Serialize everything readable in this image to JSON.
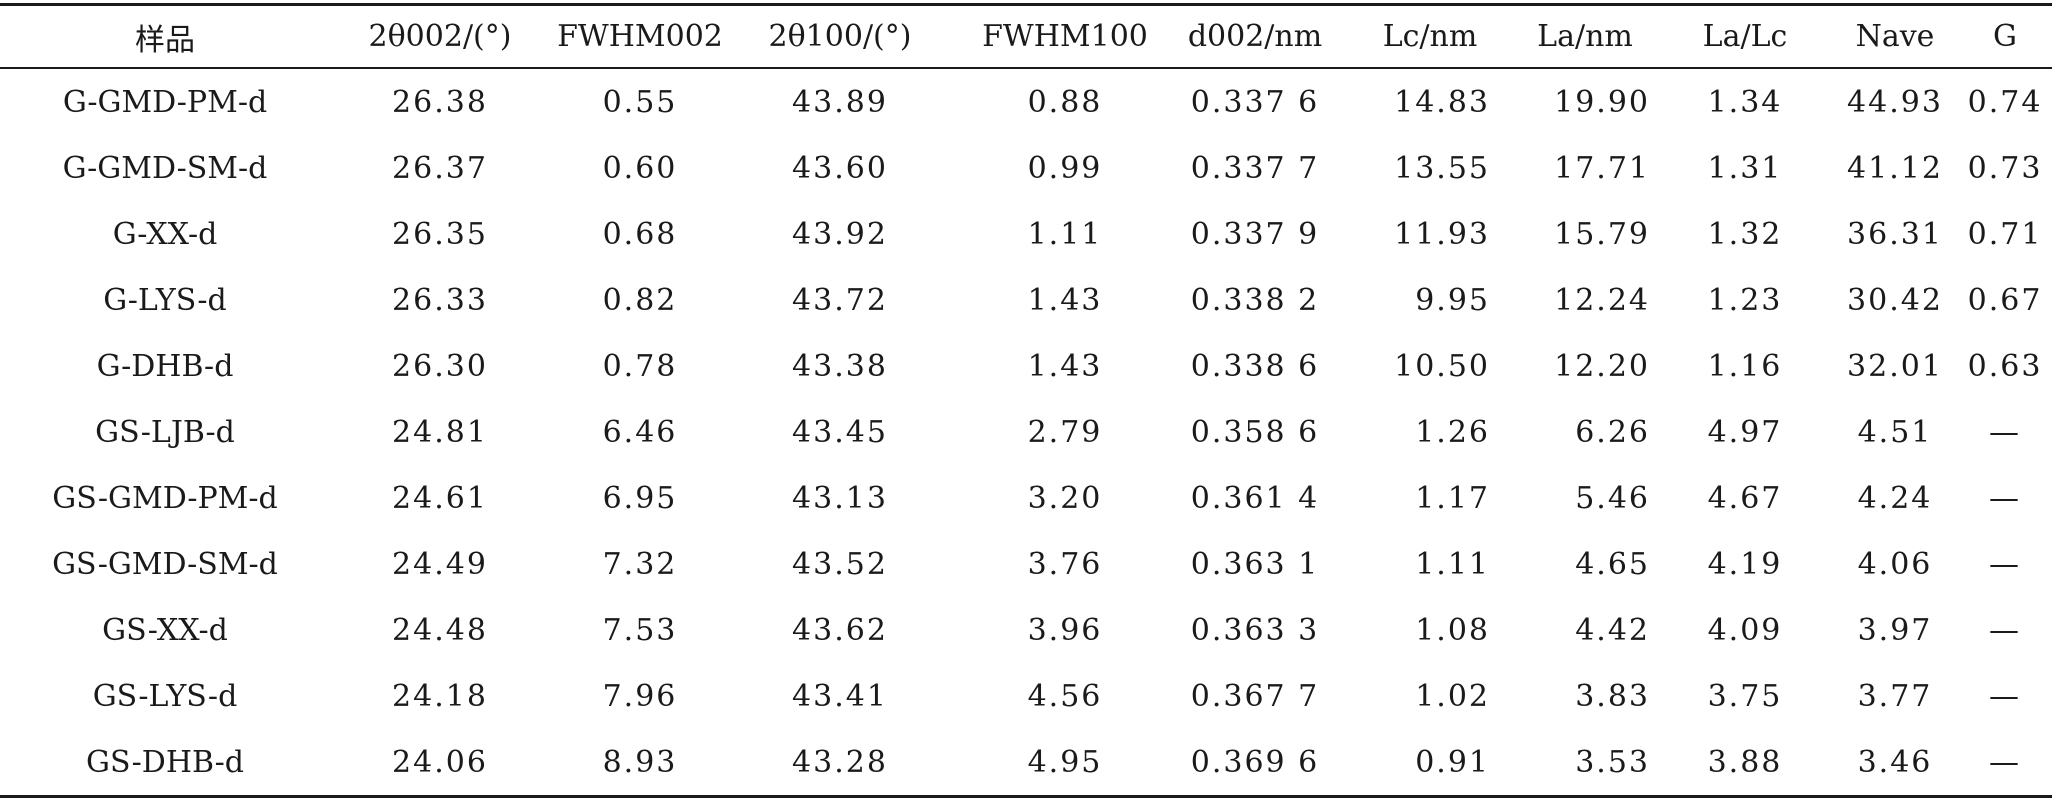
{
  "table": {
    "headers": {
      "c0": "样品",
      "c1": "2θ002/(°)",
      "c2": "FWHM002",
      "c3": "2θ100/(°)",
      "c4": "FWHM100",
      "c5": "d002/nm",
      "c6": "Lc/nm",
      "c7": "La/nm",
      "c8": "La/Lc",
      "c9": "Nave",
      "c10": "G"
    },
    "rows": [
      {
        "sample": "G-GMD-PM-d",
        "theta002": "26.38",
        "fwhm002": "0.55",
        "theta100": "43.89",
        "fwhm100": "0.88",
        "d002": "0.337 6",
        "lc": "14.83",
        "la": "19.90",
        "la_lc": "1.34",
        "nave": "44.93",
        "g": "0.74"
      },
      {
        "sample": "G-GMD-SM-d",
        "theta002": "26.37",
        "fwhm002": "0.60",
        "theta100": "43.60",
        "fwhm100": "0.99",
        "d002": "0.337 7",
        "lc": "13.55",
        "la": "17.71",
        "la_lc": "1.31",
        "nave": "41.12",
        "g": "0.73"
      },
      {
        "sample": "G-XX-d",
        "theta002": "26.35",
        "fwhm002": "0.68",
        "theta100": "43.92",
        "fwhm100": "1.11",
        "d002": "0.337 9",
        "lc": "11.93",
        "la": "15.79",
        "la_lc": "1.32",
        "nave": "36.31",
        "g": "0.71"
      },
      {
        "sample": "G-LYS-d",
        "theta002": "26.33",
        "fwhm002": "0.82",
        "theta100": "43.72",
        "fwhm100": "1.43",
        "d002": "0.338 2",
        "lc": "9.95",
        "la": "12.24",
        "la_lc": "1.23",
        "nave": "30.42",
        "g": "0.67"
      },
      {
        "sample": "G-DHB-d",
        "theta002": "26.30",
        "fwhm002": "0.78",
        "theta100": "43.38",
        "fwhm100": "1.43",
        "d002": "0.338 6",
        "lc": "10.50",
        "la": "12.20",
        "la_lc": "1.16",
        "nave": "32.01",
        "g": "0.63"
      },
      {
        "sample": "GS-LJB-d",
        "theta002": "24.81",
        "fwhm002": "6.46",
        "theta100": "43.45",
        "fwhm100": "2.79",
        "d002": "0.358 6",
        "lc": "1.26",
        "la": "6.26",
        "la_lc": "4.97",
        "nave": "4.51",
        "g": "—"
      },
      {
        "sample": "GS-GMD-PM-d",
        "theta002": "24.61",
        "fwhm002": "6.95",
        "theta100": "43.13",
        "fwhm100": "3.20",
        "d002": "0.361 4",
        "lc": "1.17",
        "la": "5.46",
        "la_lc": "4.67",
        "nave": "4.24",
        "g": "—"
      },
      {
        "sample": "GS-GMD-SM-d",
        "theta002": "24.49",
        "fwhm002": "7.32",
        "theta100": "43.52",
        "fwhm100": "3.76",
        "d002": "0.363 1",
        "lc": "1.11",
        "la": "4.65",
        "la_lc": "4.19",
        "nave": "4.06",
        "g": "—"
      },
      {
        "sample": "GS-XX-d",
        "theta002": "24.48",
        "fwhm002": "7.53",
        "theta100": "43.62",
        "fwhm100": "3.96",
        "d002": "0.363 3",
        "lc": "1.08",
        "la": "4.42",
        "la_lc": "4.09",
        "nave": "3.97",
        "g": "—"
      },
      {
        "sample": "GS-LYS-d",
        "theta002": "24.18",
        "fwhm002": "7.96",
        "theta100": "43.41",
        "fwhm100": "4.56",
        "d002": "0.367 7",
        "lc": "1.02",
        "la": "3.83",
        "la_lc": "3.75",
        "nave": "3.77",
        "g": "—"
      },
      {
        "sample": "GS-DHB-d",
        "theta002": "24.06",
        "fwhm002": "8.93",
        "theta100": "43.28",
        "fwhm100": "4.95",
        "d002": "0.369 6",
        "lc": "0.91",
        "la": "3.53",
        "la_lc": "3.88",
        "nave": "3.46",
        "g": "—"
      }
    ]
  }
}
